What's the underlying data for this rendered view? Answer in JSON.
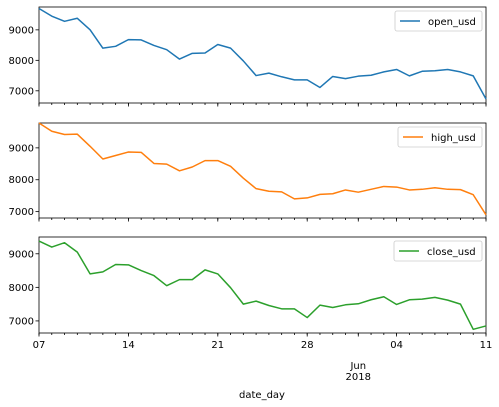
{
  "chart_data": {
    "type": "line",
    "xlabel": "date_day",
    "x_range": [
      "2018-05-07",
      "2018-06-11"
    ],
    "x_tick_labels": [
      "07",
      "14",
      "21",
      "28",
      "Jun\n2018",
      "04",
      "11"
    ],
    "x_tick_dates": [
      "2018-05-07",
      "2018-05-14",
      "2018-05-21",
      "2018-05-28",
      "2018-06-01",
      "2018-06-04",
      "2018-06-11"
    ],
    "panels": [
      {
        "name": "open_usd",
        "color": "#1f77b4",
        "legend": "open_usd",
        "legend_position": "upper-right",
        "ylim": [
          6600,
          9750
        ],
        "yticks": [
          7000,
          8000,
          9000
        ],
        "values": [
          9700,
          9450,
          9280,
          9380,
          9000,
          8400,
          8460,
          8680,
          8670,
          8490,
          8350,
          8040,
          8230,
          8240,
          8520,
          8400,
          7980,
          7500,
          7580,
          7460,
          7360,
          7360,
          7110,
          7470,
          7400,
          7480,
          7510,
          7620,
          7700,
          7490,
          7640,
          7660,
          7700,
          7620,
          7490,
          6730
        ]
      },
      {
        "name": "high_usd",
        "color": "#ff7f0e",
        "legend": "high_usd",
        "legend_position": "upper-right",
        "ylim": [
          6800,
          9780
        ],
        "yticks": [
          7000,
          8000,
          9000
        ],
        "values": [
          9780,
          9520,
          9420,
          9430,
          9050,
          8650,
          8760,
          8870,
          8860,
          8510,
          8490,
          8280,
          8400,
          8600,
          8600,
          8420,
          8050,
          7720,
          7640,
          7620,
          7400,
          7430,
          7540,
          7560,
          7680,
          7610,
          7700,
          7790,
          7770,
          7680,
          7700,
          7750,
          7700,
          7690,
          7530,
          6900
        ]
      },
      {
        "name": "close_usd",
        "color": "#2ca02c",
        "legend": "close_usd",
        "legend_position": "upper-right",
        "ylim": [
          6640,
          9500
        ],
        "yticks": [
          7000,
          8000,
          9000
        ],
        "values": [
          9380,
          9200,
          9330,
          9050,
          8400,
          8460,
          8680,
          8670,
          8500,
          8350,
          8050,
          8230,
          8230,
          8520,
          8400,
          7990,
          7500,
          7590,
          7460,
          7360,
          7360,
          7100,
          7470,
          7400,
          7480,
          7510,
          7630,
          7720,
          7490,
          7630,
          7650,
          7700,
          7620,
          7500,
          6750,
          6850
        ]
      }
    ]
  }
}
